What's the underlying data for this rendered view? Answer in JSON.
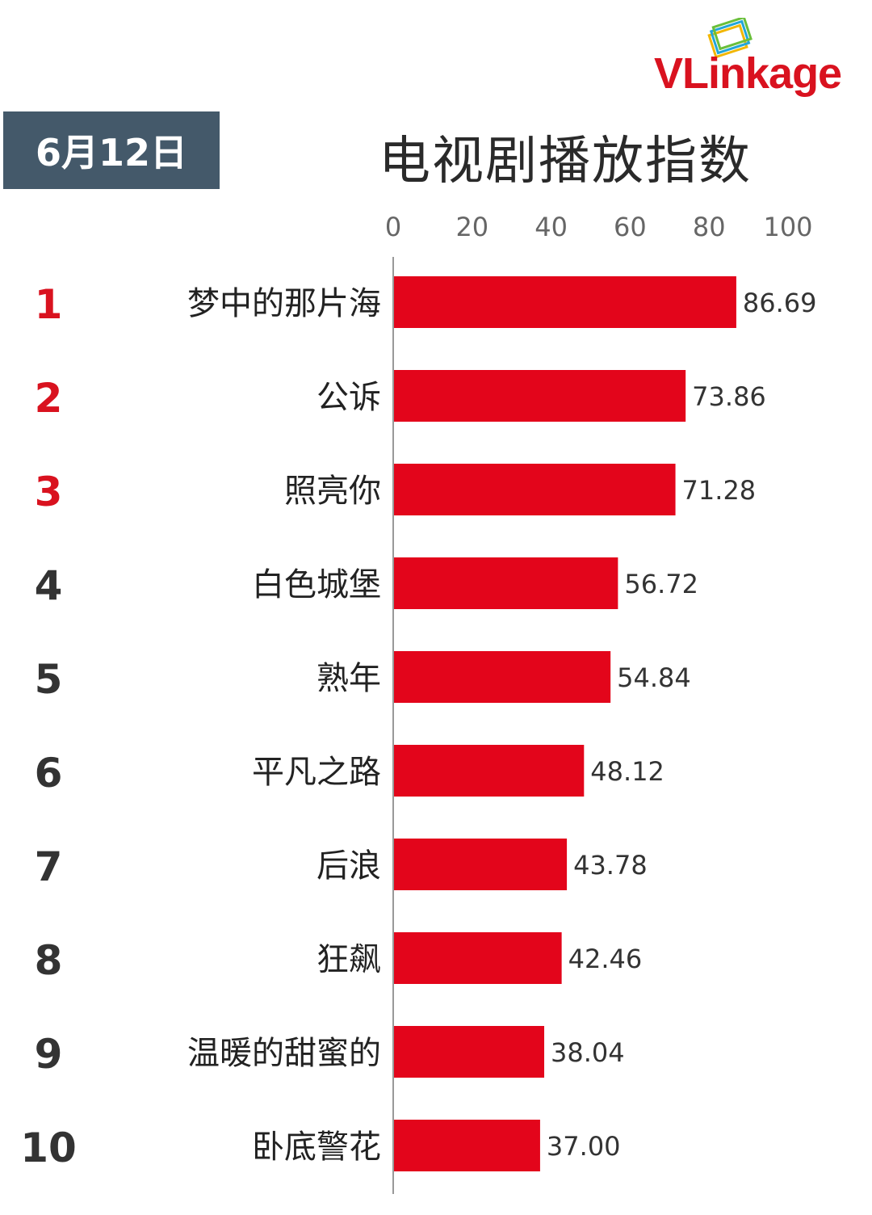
{
  "header": {
    "date": "6月12日",
    "title": "电视剧播放指数",
    "brand_v": "VL",
    "brand_rest": "inkage"
  },
  "colors": {
    "bar": "#e3051b",
    "rank_top": "#d9121f",
    "rank_other": "#333333",
    "date_bg": "#44596a"
  },
  "chart_data": {
    "type": "bar",
    "orientation": "horizontal",
    "title": "电视剧播放指数",
    "xlim": [
      0,
      100
    ],
    "x_ticks": [
      0,
      20,
      40,
      60,
      80,
      100
    ],
    "ranks": [
      "1",
      "2",
      "3",
      "4",
      "5",
      "6",
      "7",
      "8",
      "9",
      "10"
    ],
    "categories": [
      "梦中的那片海",
      "公诉",
      "照亮你",
      "白色城堡",
      "熟年",
      "平凡之路",
      "后浪",
      "狂飙",
      "温暖的甜蜜的",
      "卧底警花"
    ],
    "values": [
      86.69,
      73.86,
      71.28,
      56.72,
      54.84,
      48.12,
      43.78,
      42.46,
      38.04,
      37.0
    ],
    "value_labels": [
      "86.69",
      "73.86",
      "71.28",
      "56.72",
      "54.84",
      "48.12",
      "43.78",
      "42.46",
      "38.04",
      "37.00"
    ],
    "grid": false
  }
}
